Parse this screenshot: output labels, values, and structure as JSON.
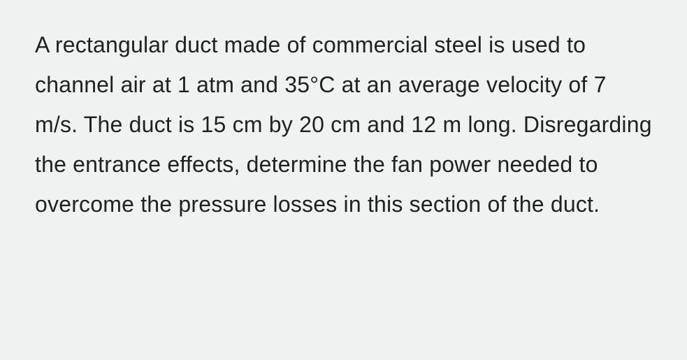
{
  "problem": {
    "text": "A rectangular duct made of commercial steel is used to channel air at 1 atm and 35°C at an average velocity of 7 m/s. The duct is 15 cm by 20 cm and 12 m long. Disregarding the entrance effects, determine the fan power needed to overcome the pressure losses in this section of the duct.",
    "text_color": "#202124",
    "background_color": "#eef3f1",
    "font_size": 32,
    "line_height": 1.78
  }
}
